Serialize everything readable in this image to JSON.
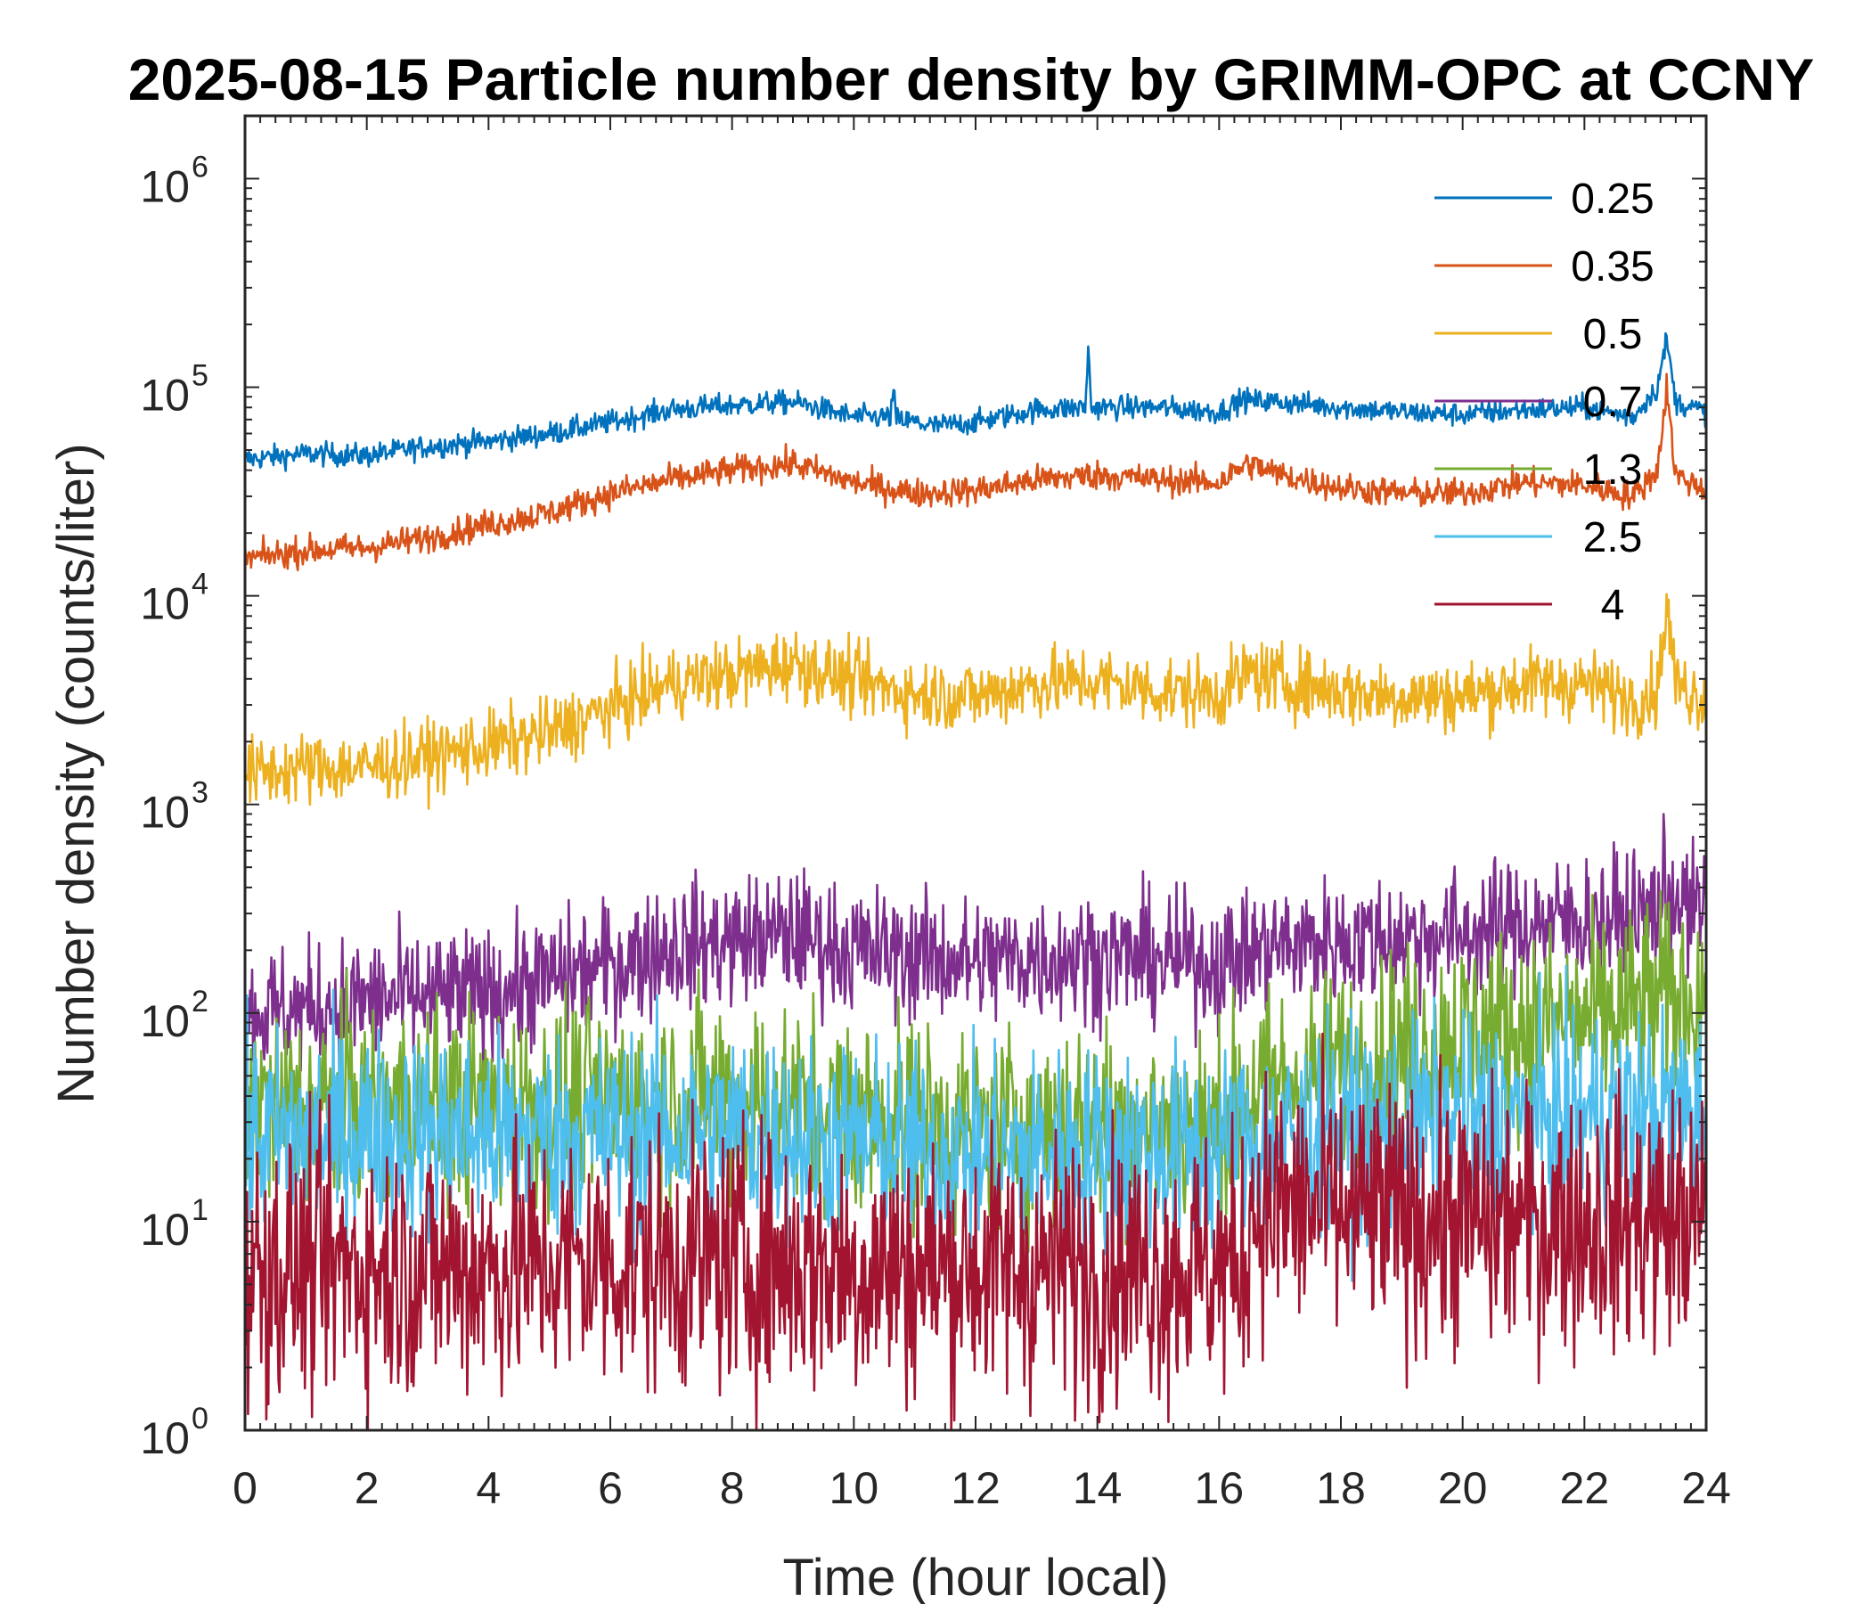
{
  "chart_data": {
    "type": "line",
    "title": "2025-08-15 Particle number density by GRIMM-OPC at CCNY",
    "xlabel": "Time (hour local)",
    "ylabel": "Number density (counts/liter)",
    "xlim": [
      0,
      24
    ],
    "ylim": [
      1,
      2000000
    ],
    "yscale": "log",
    "xticks": [
      "0",
      "2",
      "4",
      "6",
      "8",
      "10",
      "12",
      "14",
      "16",
      "18",
      "20",
      "22",
      "24"
    ],
    "yticks": [
      {
        "base": "10",
        "exp": "0"
      },
      {
        "base": "10",
        "exp": "1"
      },
      {
        "base": "10",
        "exp": "2"
      },
      {
        "base": "10",
        "exp": "3"
      },
      {
        "base": "10",
        "exp": "4"
      },
      {
        "base": "10",
        "exp": "5"
      },
      {
        "base": "10",
        "exp": "6"
      }
    ],
    "grid": false,
    "legend_position": "top-right",
    "series": [
      {
        "name": "0.25",
        "color": "#0072BD",
        "noise": 0.04,
        "x": [
          0,
          1,
          2,
          3,
          4,
          5,
          6,
          7,
          8,
          9,
          10,
          10.6,
          10.65,
          10.7,
          11,
          11.3,
          12,
          13,
          13.8,
          13.85,
          13.9,
          14,
          15,
          16,
          16.4,
          16.5,
          17,
          18,
          19,
          20,
          21,
          22,
          22.8,
          23.2,
          23.35,
          23.5,
          24
        ],
        "y": [
          45000,
          48000,
          47000,
          52000,
          55000,
          60000,
          68000,
          78000,
          82000,
          85000,
          72000,
          72000,
          95000,
          70000,
          68000,
          65000,
          68000,
          78000,
          80000,
          150000,
          80000,
          80000,
          80000,
          76000,
          88000,
          86000,
          85000,
          80000,
          76000,
          74000,
          78000,
          80000,
          72000,
          100000,
          170000,
          85000,
          76000
        ]
      },
      {
        "name": "0.35",
        "color": "#D95319",
        "noise": 0.05,
        "x": [
          0,
          1,
          2,
          3,
          4,
          5,
          6,
          7,
          8,
          9,
          10,
          11,
          12,
          13,
          14,
          15,
          16,
          16.4,
          16.5,
          17,
          18,
          19,
          20,
          21,
          22,
          22.8,
          23.2,
          23.35,
          23.5,
          24
        ],
        "y": [
          15000,
          16500,
          17000,
          19000,
          22000,
          25000,
          31000,
          36000,
          40000,
          43000,
          35000,
          31000,
          32000,
          36000,
          38000,
          36000,
          35000,
          42000,
          43000,
          38000,
          33000,
          31000,
          31000,
          35000,
          34000,
          30000,
          40000,
          100000,
          38000,
          32000
        ]
      },
      {
        "name": "0.5",
        "color": "#EDB120",
        "noise": 0.12,
        "x": [
          0,
          1,
          2,
          3,
          4,
          5,
          6,
          7,
          8,
          9,
          10,
          11,
          12,
          13,
          14,
          15,
          16,
          16.5,
          17,
          18,
          19,
          20,
          21,
          22,
          22.8,
          23.2,
          23.35,
          23.5,
          24
        ],
        "y": [
          1400,
          1500,
          1500,
          1700,
          1900,
          2200,
          2900,
          3800,
          4200,
          4800,
          3900,
          3400,
          3300,
          3800,
          3900,
          3500,
          3400,
          4300,
          3900,
          3500,
          3300,
          3300,
          3800,
          3800,
          3200,
          3500,
          9000,
          3800,
          3200
        ]
      },
      {
        "name": "0.7",
        "color": "#7E2F8E",
        "noise": 0.22,
        "x": [
          0,
          1,
          2,
          3,
          4,
          5,
          6,
          7,
          8,
          9,
          10,
          11,
          12,
          13,
          14,
          15,
          16,
          17,
          18,
          19,
          20,
          21,
          22,
          23,
          23.4,
          23.6,
          24
        ],
        "y": [
          100,
          105,
          115,
          120,
          125,
          145,
          170,
          210,
          220,
          240,
          200,
          190,
          175,
          185,
          190,
          180,
          175,
          210,
          220,
          230,
          240,
          270,
          280,
          290,
          400,
          320,
          300
        ]
      },
      {
        "name": "1.3",
        "color": "#77AC30",
        "noise": 0.35,
        "x": [
          0,
          2,
          4,
          6,
          8,
          10,
          12,
          14,
          16,
          16.5,
          17,
          18,
          19,
          20,
          21,
          22,
          23,
          24
        ],
        "y": [
          35,
          36,
          36,
          38,
          40,
          33,
          28,
          30,
          28,
          42,
          45,
          55,
          65,
          80,
          85,
          90,
          110,
          120
        ]
      },
      {
        "name": "2.5",
        "color": "#4DBEEE",
        "noise": 0.35,
        "x": [
          0,
          2,
          4,
          6,
          8,
          10,
          12,
          14,
          16,
          18,
          20,
          22,
          24
        ],
        "y": [
          25,
          27,
          26,
          26,
          27,
          24,
          20,
          22,
          22,
          28,
          30,
          32,
          34
        ]
      },
      {
        "name": "4",
        "color": "#A2142F",
        "noise": 0.45,
        "x": [
          0,
          2,
          4,
          6,
          8,
          10,
          12,
          14,
          16,
          16.4,
          16.5,
          18,
          20,
          22,
          24
        ],
        "y": [
          6,
          6,
          6,
          6.5,
          6.5,
          6,
          6,
          6,
          6,
          6,
          12,
          11,
          10,
          10,
          10
        ]
      }
    ]
  }
}
